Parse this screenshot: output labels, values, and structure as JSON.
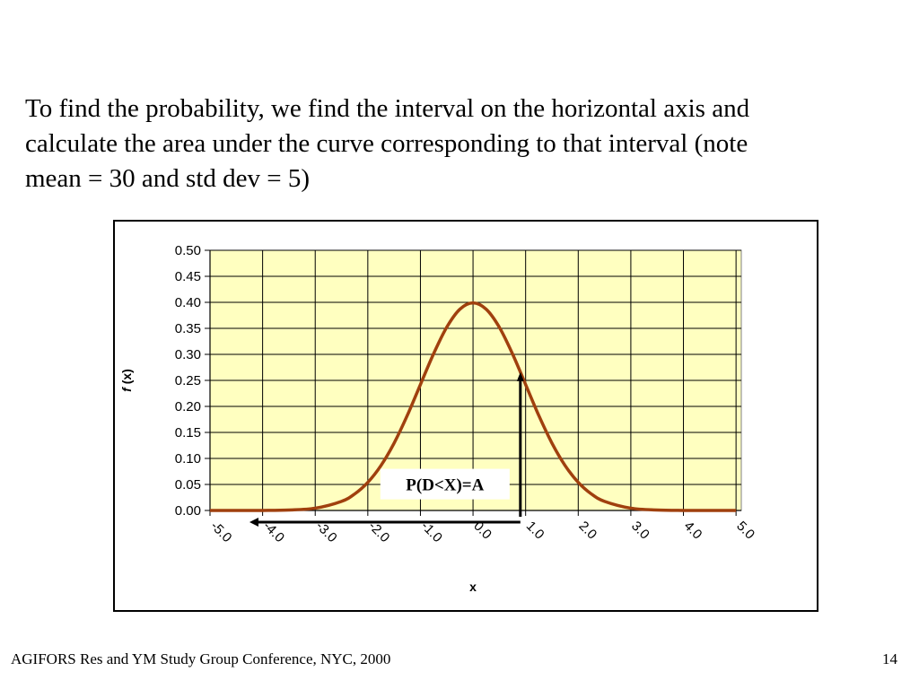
{
  "slide": {
    "intro_text": "To find the probability, we find the interval on the horizontal axis and calculate the area under the curve corresponding to that interval (note mean = 30 and std dev = 5)",
    "footer_text": "AGIFORS Res and YM Study Group Conference, NYC, 2000",
    "page_number": "14"
  },
  "chart_data": {
    "type": "line",
    "xlabel": "x",
    "ylabel_italic": "f",
    "ylabel_rest": " (x)",
    "x_tick_labels": [
      "-5.0",
      "-4.0",
      "-3.0",
      "-2.0",
      "-1.0",
      "0.0",
      "1.0",
      "2.0",
      "3.0",
      "4.0",
      "5.0"
    ],
    "y_tick_labels": [
      "0.00",
      "0.05",
      "0.10",
      "0.15",
      "0.20",
      "0.25",
      "0.30",
      "0.35",
      "0.40",
      "0.45",
      "0.50"
    ],
    "xlim": [
      -5.0,
      5.1
    ],
    "ylim": [
      0.0,
      0.5
    ],
    "grid": true,
    "plot_background": "#ffffc0",
    "series": [
      {
        "color": "#a0400e",
        "x": [
          -5.0,
          -4.5,
          -4.0,
          -3.5,
          -3.0,
          -2.5,
          -2.25,
          -2.0,
          -1.75,
          -1.5,
          -1.25,
          -1.0,
          -0.75,
          -0.5,
          -0.25,
          0.0,
          0.25,
          0.5,
          0.75,
          1.0,
          1.25,
          1.5,
          1.75,
          2.0,
          2.25,
          2.5,
          3.0,
          3.5,
          4.0,
          4.5,
          5.0
        ],
        "values": [
          0.0,
          0.0,
          0.0001,
          0.0009,
          0.0044,
          0.0175,
          0.0317,
          0.054,
          0.0863,
          0.1295,
          0.1826,
          0.242,
          0.3011,
          0.3521,
          0.3867,
          0.3989,
          0.3867,
          0.3521,
          0.3011,
          0.242,
          0.1826,
          0.1295,
          0.0863,
          0.054,
          0.0317,
          0.0175,
          0.0044,
          0.0009,
          0.0001,
          0.0,
          0.0
        ]
      }
    ],
    "annotation": {
      "label": "P(D<X)=A",
      "marker_x": 0.9,
      "arrow_from_x": 0.9,
      "arrow_to_x": -4.25,
      "color": "#000000"
    }
  }
}
